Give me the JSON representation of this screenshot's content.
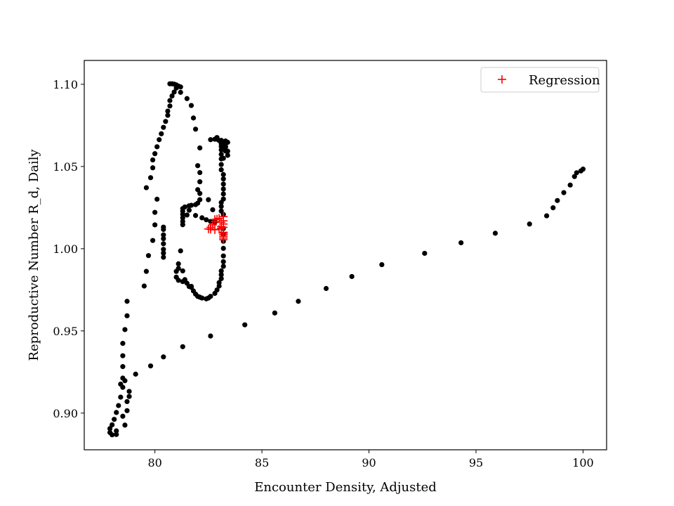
{
  "chart_data": {
    "type": "scatter",
    "xlabel": "Encounter Density, Adjusted",
    "ylabel": "Reproductive Number R_d, Daily",
    "xlim": [
      76.7,
      101.1
    ],
    "ylim": [
      0.8777,
      1.1145
    ],
    "xticks": [
      80,
      85,
      90,
      95,
      100
    ],
    "xtick_labels": [
      "80",
      "85",
      "90",
      "95",
      "100"
    ],
    "yticks": [
      0.9,
      0.95,
      1.0,
      1.05,
      1.1
    ],
    "ytick_labels": [
      "0.90",
      "0.95",
      "1.00",
      "1.05",
      "1.10"
    ],
    "grid": false,
    "legend": {
      "position": "top-right",
      "entries": [
        "Regression"
      ]
    },
    "series": [
      {
        "marker": "circle",
        "color": "#000000",
        "points": [
          [
            100.0,
            1.0484
          ],
          [
            99.9,
            1.0473
          ],
          [
            99.7,
            1.0462
          ],
          [
            99.6,
            1.0439
          ],
          [
            99.4,
            1.0387
          ],
          [
            99.1,
            1.0341
          ],
          [
            98.8,
            1.0293
          ],
          [
            98.6,
            1.0249
          ],
          [
            98.3,
            1.02
          ],
          [
            97.5,
            1.015
          ],
          [
            95.9,
            1.0094
          ],
          [
            94.3,
            1.0036
          ],
          [
            92.6,
            0.9972
          ],
          [
            90.6,
            0.9903
          ],
          [
            89.2,
            0.9831
          ],
          [
            88.0,
            0.9758
          ],
          [
            86.7,
            0.968
          ],
          [
            85.6,
            0.9609
          ],
          [
            84.2,
            0.9537
          ],
          [
            82.6,
            0.9469
          ],
          [
            81.3,
            0.9404
          ],
          [
            80.4,
            0.9342
          ],
          [
            79.8,
            0.9287
          ],
          [
            79.1,
            0.9237
          ],
          [
            78.8,
            0.9132
          ],
          [
            78.8,
            0.9101
          ],
          [
            78.7,
            0.907
          ],
          [
            78.7,
            0.9015
          ],
          [
            78.6,
            0.8927
          ],
          [
            78.5,
            0.8981
          ],
          [
            78.4,
            0.9097
          ],
          [
            78.5,
            0.9157
          ],
          [
            78.4,
            0.9176
          ],
          [
            78.6,
            0.9197
          ],
          [
            78.5,
            0.9213
          ],
          [
            78.5,
            0.9283
          ],
          [
            78.5,
            0.9349
          ],
          [
            78.5,
            0.9424
          ],
          [
            78.6,
            0.9508
          ],
          [
            78.7,
            0.9592
          ],
          [
            78.7,
            0.968
          ],
          [
            78.3,
            0.9046
          ],
          [
            78.2,
            0.9004
          ],
          [
            78.1,
            0.8962
          ],
          [
            78.0,
            0.8929
          ],
          [
            77.9,
            0.8906
          ],
          [
            77.9,
            0.8882
          ],
          [
            78.0,
            0.8868
          ],
          [
            78.2,
            0.887
          ],
          [
            78.2,
            0.8892
          ],
          [
            79.5,
            0.9773
          ],
          [
            79.6,
            0.9862
          ],
          [
            79.7,
            0.9958
          ],
          [
            79.9,
            1.005
          ],
          [
            80.0,
            1.0145
          ],
          [
            80.0,
            1.0221
          ],
          [
            80.1,
            1.0301
          ],
          [
            79.6,
            1.0371
          ],
          [
            79.8,
            1.0432
          ],
          [
            79.9,
            1.0492
          ],
          [
            79.9,
            1.054
          ],
          [
            80.0,
            1.0578
          ],
          [
            80.1,
            1.062
          ],
          [
            80.2,
            1.0663
          ],
          [
            80.3,
            1.0699
          ],
          [
            80.4,
            1.0738
          ],
          [
            80.5,
            1.0774
          ],
          [
            80.6,
            1.0811
          ],
          [
            80.6,
            1.0837
          ],
          [
            80.7,
            1.0868
          ],
          [
            80.7,
            1.0901
          ],
          [
            80.8,
            1.0929
          ],
          [
            80.9,
            1.0953
          ],
          [
            81.0,
            1.0977
          ],
          [
            80.9,
            1.1001
          ],
          [
            80.8,
            1.1003
          ],
          [
            80.7,
            1.1003
          ],
          [
            81.0,
            1.0996
          ],
          [
            81.1,
            1.0989
          ],
          [
            81.2,
            1.0984
          ],
          [
            81.2,
            1.0951
          ],
          [
            81.5,
            1.0913
          ],
          [
            81.7,
            1.0871
          ],
          [
            81.8,
            1.0795
          ],
          [
            81.9,
            1.0727
          ],
          [
            82.1,
            1.0613
          ],
          [
            82.0,
            1.0505
          ],
          [
            82.1,
            1.0463
          ],
          [
            82.1,
            1.0407
          ],
          [
            82.0,
            1.0359
          ],
          [
            82.1,
            1.0336
          ],
          [
            82.1,
            1.0298
          ],
          [
            82.0,
            1.0277
          ],
          [
            81.9,
            1.0268
          ],
          [
            81.7,
            1.0264
          ],
          [
            81.6,
            1.0261
          ],
          [
            81.4,
            1.0254
          ],
          [
            81.3,
            1.0244
          ],
          [
            81.3,
            1.0228
          ],
          [
            81.3,
            1.0209
          ],
          [
            81.3,
            1.0188
          ],
          [
            81.3,
            1.0166
          ],
          [
            81.3,
            1.0146
          ],
          [
            81.5,
            1.0205
          ],
          [
            81.6,
            1.0234
          ],
          [
            81.9,
            1.0202
          ],
          [
            82.2,
            1.0188
          ],
          [
            82.4,
            1.0176
          ],
          [
            82.6,
            1.0166
          ],
          [
            82.8,
            1.0162
          ],
          [
            82.7,
            1.0237
          ],
          [
            82.5,
            1.0298
          ],
          [
            80.4,
            1.0131
          ],
          [
            80.4,
            1.0117
          ],
          [
            80.4,
            1.0084
          ],
          [
            80.4,
            1.0061
          ],
          [
            80.4,
            1.003
          ],
          [
            80.4,
            0.9996
          ],
          [
            80.4,
            0.9973
          ],
          [
            80.4,
            0.9948
          ],
          [
            81.1,
            0.9908
          ],
          [
            81.1,
            0.988
          ],
          [
            81.0,
            0.9862
          ],
          [
            81.0,
            0.9827
          ],
          [
            81.1,
            0.9808
          ],
          [
            81.3,
            0.98
          ],
          [
            81.5,
            0.979
          ],
          [
            81.6,
            0.977
          ],
          [
            81.7,
            0.9765
          ],
          [
            81.8,
            0.9743
          ],
          [
            81.9,
            0.9724
          ],
          [
            82.0,
            0.971
          ],
          [
            82.1,
            0.9705
          ],
          [
            82.2,
            0.97
          ],
          [
            82.4,
            0.9695
          ],
          [
            82.5,
            0.97
          ],
          [
            82.6,
            0.971
          ],
          [
            82.8,
            0.9728
          ],
          [
            82.9,
            0.9749
          ],
          [
            83.0,
            0.9773
          ],
          [
            83.0,
            0.9794
          ],
          [
            83.1,
            0.9818
          ],
          [
            83.1,
            0.9842
          ],
          [
            83.1,
            0.9865
          ],
          [
            83.2,
            0.9893
          ],
          [
            83.2,
            0.9921
          ],
          [
            83.2,
            0.9956
          ],
          [
            83.2,
            1.0002
          ],
          [
            83.2,
            1.0045
          ],
          [
            83.2,
            1.0088
          ],
          [
            83.2,
            1.0123
          ],
          [
            83.2,
            1.0208
          ],
          [
            83.1,
            1.0229
          ],
          [
            83.1,
            1.0257
          ],
          [
            83.1,
            1.0281
          ],
          [
            83.2,
            1.0302
          ],
          [
            83.2,
            1.0333
          ],
          [
            83.2,
            1.0363
          ],
          [
            83.2,
            1.0393
          ],
          [
            83.2,
            1.0424
          ],
          [
            83.2,
            1.0451
          ],
          [
            83.1,
            1.048
          ],
          [
            83.1,
            1.0512
          ],
          [
            83.1,
            1.0546
          ],
          [
            83.1,
            1.0574
          ],
          [
            83.1,
            1.0601
          ],
          [
            83.1,
            1.0622
          ],
          [
            83.2,
            1.0644
          ],
          [
            83.3,
            1.0655
          ],
          [
            83.3,
            1.0622
          ],
          [
            83.4,
            1.0593
          ],
          [
            83.4,
            1.0568
          ],
          [
            83.3,
            1.0594
          ],
          [
            83.2,
            1.0615
          ],
          [
            83.1,
            1.0639
          ],
          [
            83.0,
            1.0658
          ],
          [
            82.9,
            1.0666
          ],
          [
            82.8,
            1.0666
          ],
          [
            82.6,
            1.0663
          ],
          [
            82.9,
            1.0676
          ],
          [
            83.1,
            1.0659
          ],
          [
            83.2,
            1.0606
          ],
          [
            83.2,
            1.055
          ],
          [
            83.3,
            1.0618
          ],
          [
            83.4,
            1.0647
          ],
          [
            81.2,
            0.9987
          ],
          [
            81.3,
            0.9865
          ],
          [
            81.4,
            0.9812
          ],
          [
            81.7,
            0.9771
          ]
        ]
      },
      {
        "name": "Regression",
        "marker": "plus",
        "color": "#ff0000",
        "points": [
          [
            83.2,
            1.0195
          ],
          [
            83.0,
            1.0185
          ],
          [
            82.9,
            1.018
          ],
          [
            82.8,
            1.0165
          ],
          [
            82.7,
            1.0145
          ],
          [
            82.6,
            1.013
          ],
          [
            82.5,
            1.012
          ],
          [
            82.6,
            1.0118
          ],
          [
            82.8,
            1.0115
          ],
          [
            83.0,
            1.0118
          ],
          [
            83.1,
            1.0125
          ],
          [
            83.2,
            1.013
          ],
          [
            83.1,
            1.0135
          ],
          [
            83.2,
            1.01
          ],
          [
            83.2,
            1.0095
          ],
          [
            83.2,
            1.0085
          ],
          [
            83.2,
            1.0075
          ],
          [
            83.2,
            1.0065
          ],
          [
            83.2,
            1.0055
          ],
          [
            83.2,
            1.015
          ],
          [
            83.1,
            1.016
          ],
          [
            83.2,
            1.017
          ],
          [
            82.8,
            1.0178
          ]
        ]
      }
    ]
  }
}
